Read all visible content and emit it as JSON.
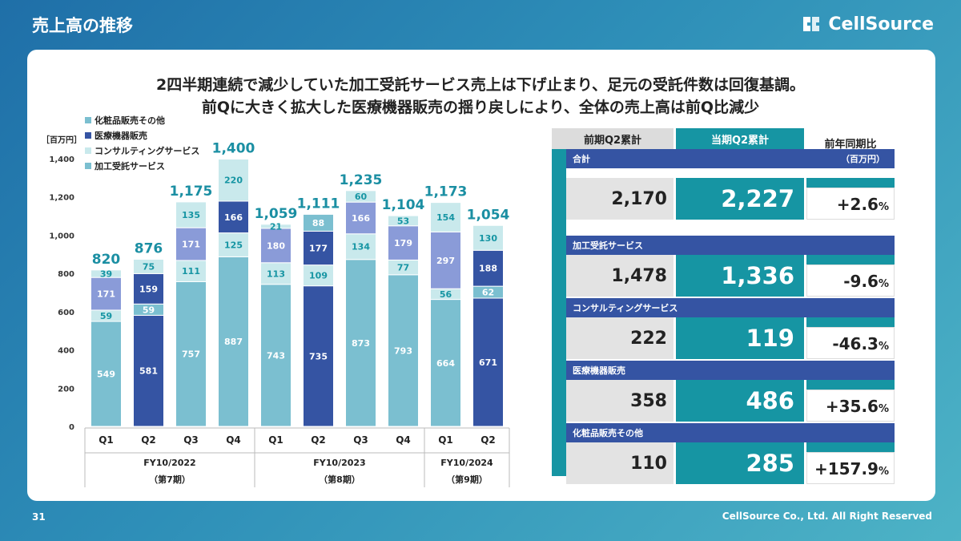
{
  "page": {
    "title": "売上高の推移",
    "logo_text": "CellSource",
    "headline_line1": "2四半期連続で減少していた加工受託サービス売上は下げ止まり、足元の受託件数は回復基調。",
    "headline_line2": "前Qに大きく拡大した医療機器販売の揺り戻しにより、全体の売上高は前Q比減少",
    "page_number": "31",
    "copyright": "CellSource Co., Ltd. All Right Reserved"
  },
  "colors": {
    "processing": "#7bbfd0",
    "consulting": "#c9e9ec",
    "medical": "#3554a3",
    "cosmetics": "#8a9bd8",
    "accent": "#1695a3",
    "total_label": "#1b8fa3"
  },
  "chart_data": {
    "type": "bar",
    "stacked": true,
    "unit_label": "［百万円］",
    "yticks": [
      "0",
      "200",
      "400",
      "600",
      "800",
      "1,000",
      "1,200",
      "1,400"
    ],
    "ylim": [
      0,
      1400
    ],
    "categories": [
      "Q1",
      "Q2",
      "Q3",
      "Q4",
      "Q1",
      "Q2",
      "Q3",
      "Q4",
      "Q1",
      "Q2"
    ],
    "fiscal_years": [
      {
        "label": "FY10/2022",
        "sub": "（第7期）",
        "start": 0,
        "end": 3
      },
      {
        "label": "FY10/2023",
        "sub": "（第8期）",
        "start": 4,
        "end": 7
      },
      {
        "label": "FY10/2024",
        "sub": "（第9期）",
        "start": 8,
        "end": 9
      }
    ],
    "series": [
      {
        "name": "加工受託サービス",
        "key": "processing",
        "values": [
          549,
          581,
          757,
          887,
          743,
          735,
          873,
          793,
          664,
          671
        ]
      },
      {
        "name": "コンサルティングサービス",
        "key": "consulting",
        "values": [
          59,
          59,
          111,
          125,
          113,
          109,
          134,
          77,
          56,
          62
        ]
      },
      {
        "name": "医療機器販売",
        "key": "medical",
        "values": [
          null,
          159,
          null,
          null,
          null,
          177,
          null,
          null,
          null,
          188
        ]
      },
      {
        "name": "化粧品販売その他",
        "key": "cosmetics",
        "values": [
          171,
          75,
          171,
          166,
          180,
          88,
          166,
          179,
          297,
          130
        ]
      },
      {
        "name": "top",
        "key": "top",
        "values": [
          39,
          null,
          135,
          220,
          21,
          null,
          60,
          53,
          154,
          null
        ]
      }
    ],
    "segment_colors": [
      [
        "processing",
        "consulting",
        "cosmetics",
        "consulting"
      ],
      [
        "medical",
        "processing",
        "medical",
        "consulting"
      ],
      [
        "processing",
        "consulting",
        "cosmetics",
        "consulting"
      ],
      [
        "processing",
        "consulting",
        "medical",
        "consulting"
      ],
      [
        "processing",
        "consulting",
        "cosmetics",
        "consulting"
      ],
      [
        "medical",
        "consulting",
        "medical",
        "processing"
      ],
      [
        "processing",
        "consulting",
        "cosmetics",
        "consulting"
      ],
      [
        "processing",
        "consulting",
        "cosmetics",
        "consulting"
      ],
      [
        "processing",
        "consulting",
        "cosmetics",
        "consulting"
      ],
      [
        "medical",
        "processing",
        "medical",
        "consulting"
      ]
    ],
    "stacks": [
      [
        549,
        59,
        171,
        39
      ],
      [
        581,
        59,
        159,
        75
      ],
      [
        757,
        111,
        171,
        135
      ],
      [
        887,
        125,
        166,
        220
      ],
      [
        743,
        113,
        180,
        21
      ],
      [
        735,
        109,
        177,
        88
      ],
      [
        873,
        134,
        166,
        60
      ],
      [
        793,
        77,
        179,
        53
      ],
      [
        664,
        56,
        297,
        154
      ],
      [
        671,
        62,
        188,
        130
      ]
    ],
    "totals": [
      "820",
      "876",
      "1,175",
      "1,400",
      "1,059",
      "1,111",
      "1,235",
      "1,104",
      "1,173",
      "1,054"
    ],
    "legend": [
      {
        "name": "化粧品販売その他",
        "key": "processing"
      },
      {
        "name": "医療機器販売",
        "key": "medical"
      },
      {
        "name": "コンサルティングサービス",
        "key": "consulting"
      },
      {
        "name": "加工受託サービス",
        "key": "processing"
      }
    ]
  },
  "table": {
    "header_prev": "前期Q2累計",
    "header_cur": "当期Q2累計",
    "header_yoy": "前年同期比",
    "unit": "（百万円）",
    "rows": [
      {
        "label": "合計",
        "prev": "2,170",
        "cur": "2,227",
        "yoy": "+2.6",
        "pct": "%"
      },
      {
        "label": "加工受託サービス",
        "prev": "1,478",
        "cur": "1,336",
        "yoy": "-9.6",
        "pct": "%"
      },
      {
        "label": "コンサルティングサービス",
        "prev": "222",
        "cur": "119",
        "yoy": "-46.3",
        "pct": "%"
      },
      {
        "label": "医療機器販売",
        "prev": "358",
        "cur": "486",
        "yoy": "+35.6",
        "pct": "%"
      },
      {
        "label": "化粧品販売その他",
        "prev": "110",
        "cur": "285",
        "yoy": "+157.9",
        "pct": "%"
      }
    ]
  }
}
